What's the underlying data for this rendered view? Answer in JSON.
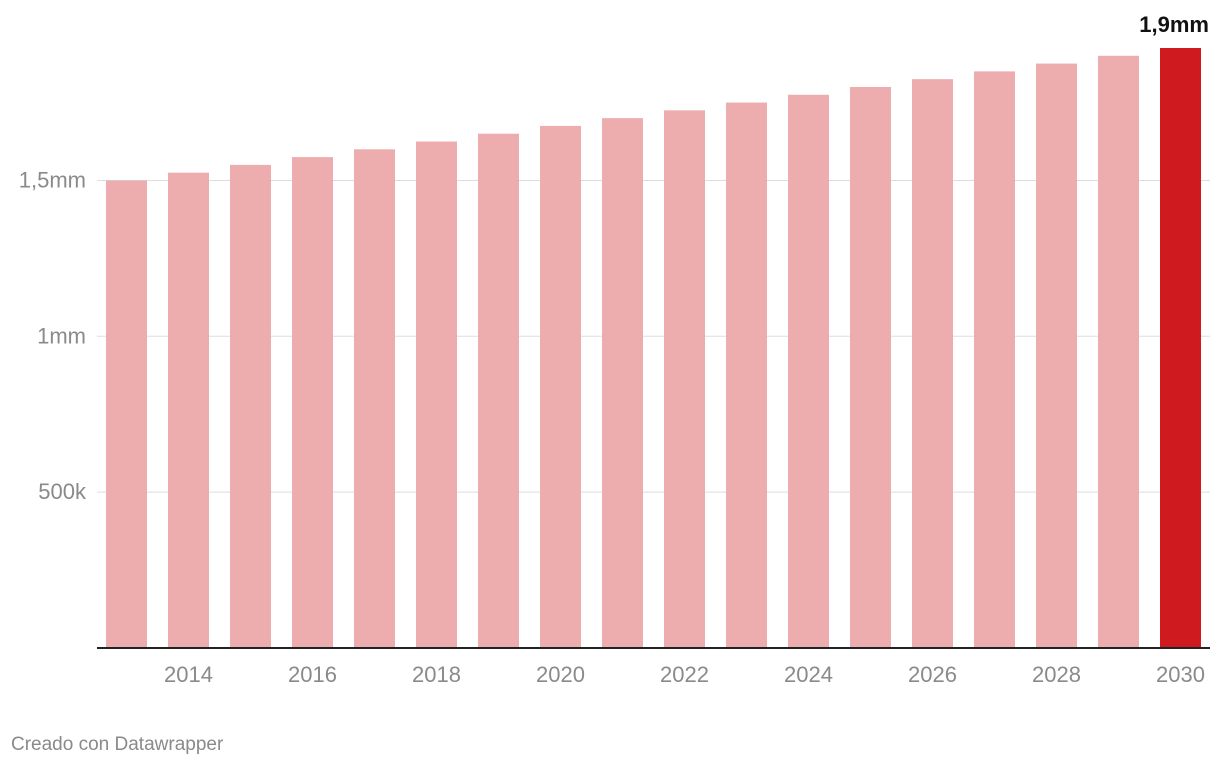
{
  "chart_data": {
    "type": "bar",
    "categories": [
      "2013",
      "2014",
      "2015",
      "2016",
      "2017",
      "2018",
      "2019",
      "2020",
      "2021",
      "2022",
      "2023",
      "2024",
      "2025",
      "2026",
      "2027",
      "2028",
      "2029",
      "2030"
    ],
    "values": [
      1500000,
      1525000,
      1550000,
      1575000,
      1600000,
      1625000,
      1650000,
      1675000,
      1700000,
      1725000,
      1750000,
      1775000,
      1800000,
      1825000,
      1850000,
      1875000,
      1900000,
      1925000
    ],
    "x_tick_labels": [
      "2014",
      "2016",
      "2018",
      "2020",
      "2022",
      "2024",
      "2026",
      "2028",
      "2030"
    ],
    "y_ticks": [
      {
        "value": 500000,
        "label": "500k"
      },
      {
        "value": 1000000,
        "label": "1mm"
      },
      {
        "value": 1500000,
        "label": "1,5mm"
      }
    ],
    "ylim": [
      0,
      1925000
    ],
    "highlight": {
      "category": "2030",
      "label": "1,9mm"
    },
    "colors": {
      "bar": "#edadae",
      "highlight_bar": "#cf1a1f",
      "gridline": "#dddddd",
      "axis_line": "#222222",
      "tick_label": "#8a8a8a",
      "value_label": "#111111"
    },
    "title": "",
    "xlabel": "",
    "ylabel": "",
    "grid": true
  },
  "footer": {
    "credit": "Creado con Datawrapper"
  }
}
